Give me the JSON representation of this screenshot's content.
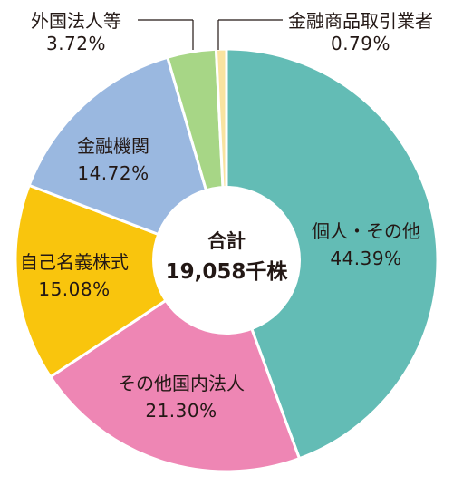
{
  "chart_data": {
    "type": "pie",
    "style": "donut",
    "center_title": "合計",
    "center_total": "19,058千株",
    "slices": [
      {
        "label": "個人・その他",
        "pct_text": "44.39%",
        "value": 44.39,
        "color": "#63bcb5"
      },
      {
        "label": "その他国内法人",
        "pct_text": "21.30%",
        "value": 21.3,
        "color": "#ee86b4"
      },
      {
        "label": "自己名義株式",
        "pct_text": "15.08%",
        "value": 15.08,
        "color": "#f9c50d"
      },
      {
        "label": "金融機関",
        "pct_text": "14.72%",
        "value": 14.72,
        "color": "#9ab8e0"
      },
      {
        "label": "外国法人等",
        "pct_text": "3.72%",
        "value": 3.72,
        "color": "#a7d686"
      },
      {
        "label": "金融商品取引業者",
        "pct_text": "0.79%",
        "value": 0.79,
        "color": "#fae3a0"
      }
    ],
    "start": "top",
    "direction": "clockwise"
  }
}
